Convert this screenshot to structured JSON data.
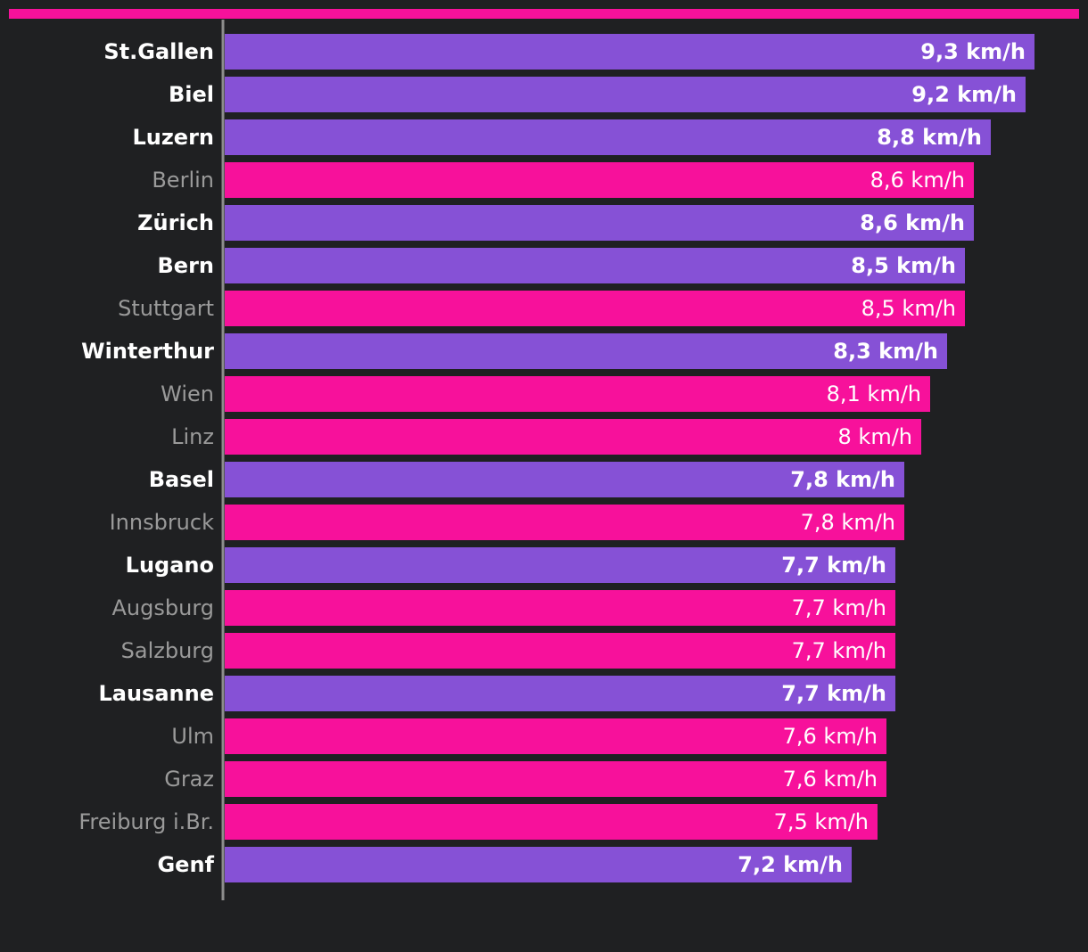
{
  "chart_data": {
    "type": "bar",
    "orientation": "horizontal",
    "unit": "km/h",
    "xlim": [
      0,
      9.3
    ],
    "colors": {
      "background": "#1f2022",
      "accent_bar": "#f7119b",
      "swiss": "#8651d6",
      "other": "#f7119b",
      "axis": "#8c8c8c",
      "label_swiss": "#ffffff",
      "label_other": "#9a9a9a"
    },
    "categories": [
      {
        "name": "St.Gallen",
        "value": 9.3,
        "label": "9,3 km/h",
        "group": "swiss"
      },
      {
        "name": "Biel",
        "value": 9.2,
        "label": "9,2 km/h",
        "group": "swiss"
      },
      {
        "name": "Luzern",
        "value": 8.8,
        "label": "8,8 km/h",
        "group": "swiss"
      },
      {
        "name": "Berlin",
        "value": 8.6,
        "label": "8,6 km/h",
        "group": "other"
      },
      {
        "name": "Zürich",
        "value": 8.6,
        "label": "8,6 km/h",
        "group": "swiss"
      },
      {
        "name": "Bern",
        "value": 8.5,
        "label": "8,5 km/h",
        "group": "swiss"
      },
      {
        "name": "Stuttgart",
        "value": 8.5,
        "label": "8,5 km/h",
        "group": "other"
      },
      {
        "name": "Winterthur",
        "value": 8.3,
        "label": "8,3 km/h",
        "group": "swiss"
      },
      {
        "name": "Wien",
        "value": 8.1,
        "label": "8,1 km/h",
        "group": "other"
      },
      {
        "name": "Linz",
        "value": 8.0,
        "label": "8 km/h",
        "group": "other"
      },
      {
        "name": "Basel",
        "value": 7.8,
        "label": "7,8 km/h",
        "group": "swiss"
      },
      {
        "name": "Innsbruck",
        "value": 7.8,
        "label": "7,8 km/h",
        "group": "other"
      },
      {
        "name": "Lugano",
        "value": 7.7,
        "label": "7,7 km/h",
        "group": "swiss"
      },
      {
        "name": "Augsburg",
        "value": 7.7,
        "label": "7,7 km/h",
        "group": "other"
      },
      {
        "name": "Salzburg",
        "value": 7.7,
        "label": "7,7 km/h",
        "group": "other"
      },
      {
        "name": "Lausanne",
        "value": 7.7,
        "label": "7,7 km/h",
        "group": "swiss"
      },
      {
        "name": "Ulm",
        "value": 7.6,
        "label": "7,6 km/h",
        "group": "other"
      },
      {
        "name": "Graz",
        "value": 7.6,
        "label": "7,6 km/h",
        "group": "other"
      },
      {
        "name": "Freiburg i.Br.",
        "value": 7.5,
        "label": "7,5 km/h",
        "group": "other"
      },
      {
        "name": "Genf",
        "value": 7.2,
        "label": "7,2 km/h",
        "group": "swiss"
      }
    ]
  }
}
